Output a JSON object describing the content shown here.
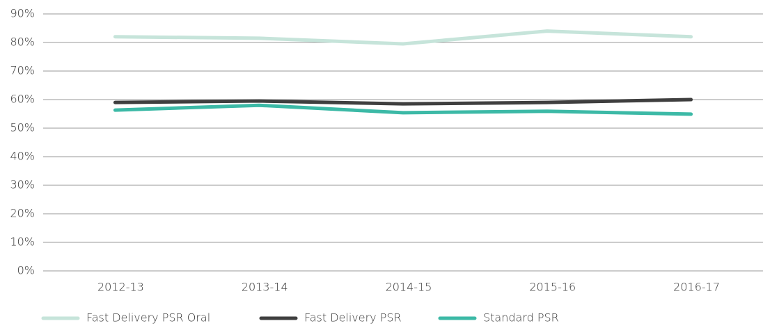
{
  "chart_data": {
    "type": "line",
    "categories": [
      "2012-13",
      "2013-14",
      "2014-15",
      "2015-16",
      "2016-17"
    ],
    "series": [
      {
        "name": "Fast Delivery PSR Oral",
        "color": "#c6e4da",
        "values": [
          82,
          81.5,
          79.5,
          84,
          82
        ]
      },
      {
        "name": "Fast Delivery PSR",
        "color": "#3f3f3f",
        "values": [
          59,
          59.5,
          58.5,
          59,
          60
        ]
      },
      {
        "name": "Standard PSR",
        "color": "#3cb9a6",
        "values": [
          56.3,
          58,
          55.4,
          55.9,
          54.9
        ]
      }
    ],
    "ylim": [
      0,
      90
    ],
    "yticks": [
      {
        "value": 0,
        "label": "0%"
      },
      {
        "value": 10,
        "label": "10%"
      },
      {
        "value": 20,
        "label": "20%"
      },
      {
        "value": 30,
        "label": "30%"
      },
      {
        "value": 40,
        "label": "40%"
      },
      {
        "value": 50,
        "label": "50%"
      },
      {
        "value": 60,
        "label": "60%"
      },
      {
        "value": 70,
        "label": "70%"
      },
      {
        "value": 80,
        "label": "80%"
      },
      {
        "value": 90,
        "label": "90%"
      }
    ],
    "grid": true,
    "legend": "bottom"
  }
}
